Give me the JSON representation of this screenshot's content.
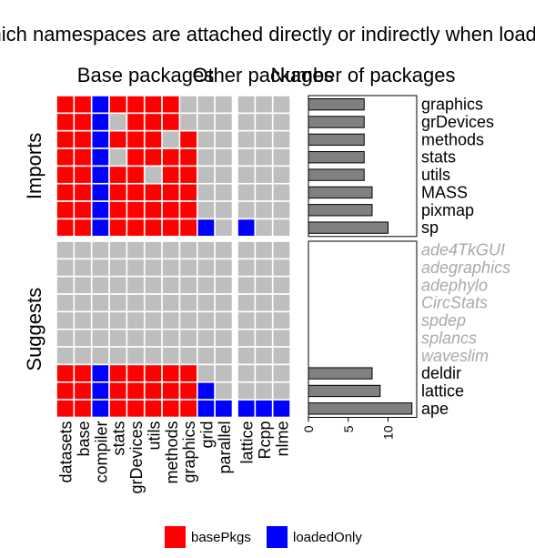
{
  "chart_data": {
    "type": "heatmap",
    "title": "Which namespaces are attached directly or indirectly when loading",
    "panel_titles": {
      "base": "Base packages",
      "other": "Other packages",
      "count": "Number of packages"
    },
    "row_groups": [
      {
        "name": "Imports",
        "rows": [
          "graphics",
          "grDevices",
          "methods",
          "stats",
          "utils",
          "MASS",
          "pixmap",
          "sp"
        ]
      },
      {
        "name": "Suggests",
        "rows": [
          "ade4TkGUI",
          "adegraphics",
          "adephylo",
          "CircStats",
          "spdep",
          "splancs",
          "waveslim",
          "deldir",
          "lattice",
          "ape"
        ]
      }
    ],
    "unavailable_rows": [
      "ade4TkGUI",
      "adegraphics",
      "adephylo",
      "CircStats",
      "spdep",
      "splancs",
      "waveslim"
    ],
    "base_columns": [
      "datasets",
      "base",
      "compiler",
      "stats",
      "grDevices",
      "utils",
      "methods",
      "graphics",
      "grid",
      "parallel"
    ],
    "other_columns": [
      "lattice",
      "Rcpp",
      "nlme"
    ],
    "matrix_codes": {
      "0": "none",
      "1": "basePkgs",
      "2": "loadedOnly"
    },
    "base_matrix": [
      [
        1,
        1,
        2,
        1,
        1,
        1,
        1,
        0,
        0,
        0
      ],
      [
        1,
        1,
        2,
        0,
        1,
        1,
        1,
        0,
        0,
        0
      ],
      [
        1,
        1,
        2,
        1,
        1,
        1,
        0,
        1,
        0,
        0
      ],
      [
        1,
        1,
        2,
        0,
        1,
        1,
        1,
        1,
        0,
        0
      ],
      [
        1,
        1,
        2,
        1,
        1,
        0,
        1,
        1,
        0,
        0
      ],
      [
        1,
        1,
        2,
        1,
        1,
        1,
        1,
        1,
        0,
        0
      ],
      [
        1,
        1,
        2,
        1,
        1,
        1,
        1,
        1,
        0,
        0
      ],
      [
        1,
        1,
        2,
        1,
        1,
        1,
        1,
        1,
        2,
        0
      ],
      [
        0,
        0,
        0,
        0,
        0,
        0,
        0,
        0,
        0,
        0
      ],
      [
        0,
        0,
        0,
        0,
        0,
        0,
        0,
        0,
        0,
        0
      ],
      [
        0,
        0,
        0,
        0,
        0,
        0,
        0,
        0,
        0,
        0
      ],
      [
        0,
        0,
        0,
        0,
        0,
        0,
        0,
        0,
        0,
        0
      ],
      [
        0,
        0,
        0,
        0,
        0,
        0,
        0,
        0,
        0,
        0
      ],
      [
        0,
        0,
        0,
        0,
        0,
        0,
        0,
        0,
        0,
        0
      ],
      [
        0,
        0,
        0,
        0,
        0,
        0,
        0,
        0,
        0,
        0
      ],
      [
        1,
        1,
        2,
        1,
        1,
        1,
        1,
        1,
        0,
        0
      ],
      [
        1,
        1,
        2,
        1,
        1,
        1,
        1,
        1,
        2,
        0
      ],
      [
        1,
        1,
        2,
        1,
        1,
        1,
        1,
        1,
        2,
        2
      ]
    ],
    "other_matrix": [
      [
        0,
        0,
        0
      ],
      [
        0,
        0,
        0
      ],
      [
        0,
        0,
        0
      ],
      [
        0,
        0,
        0
      ],
      [
        0,
        0,
        0
      ],
      [
        0,
        0,
        0
      ],
      [
        0,
        0,
        0
      ],
      [
        2,
        0,
        0
      ],
      [
        0,
        0,
        0
      ],
      [
        0,
        0,
        0
      ],
      [
        0,
        0,
        0
      ],
      [
        0,
        0,
        0
      ],
      [
        0,
        0,
        0
      ],
      [
        0,
        0,
        0
      ],
      [
        0,
        0,
        0
      ],
      [
        0,
        0,
        0
      ],
      [
        0,
        0,
        0
      ],
      [
        2,
        2,
        2
      ]
    ],
    "counts": [
      7,
      7,
      7,
      7,
      7,
      8,
      8,
      10,
      0,
      0,
      0,
      0,
      0,
      0,
      0,
      8,
      9,
      13
    ],
    "count_axis": {
      "ticks": [
        0,
        5,
        10
      ],
      "xlim": [
        0,
        13.6
      ]
    },
    "legend": [
      {
        "label": "basePkgs",
        "color": "#ff0000"
      },
      {
        "label": "loadedOnly",
        "color": "#0000ff"
      }
    ],
    "colors": {
      "basePkgs": "#ff0000",
      "loadedOnly": "#0000ff",
      "none": "#bebebe",
      "bar_fill": "#808080",
      "unavailable_label": "#a9a9a9"
    }
  }
}
